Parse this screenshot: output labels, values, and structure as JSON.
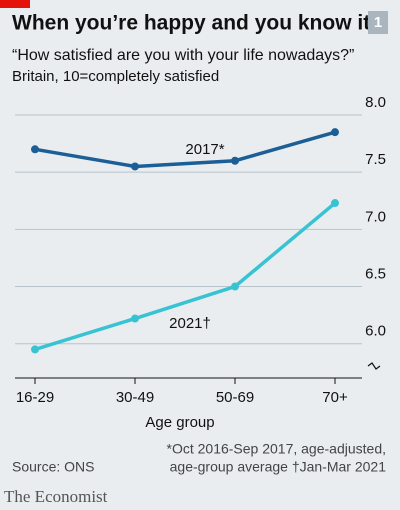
{
  "chart_data": {
    "type": "line",
    "title": "When you’re happy and you know it",
    "chart_number": "1",
    "subtitle": "“How satisfied are you with your life nowadays?”",
    "subtitle2": "Britain, 10=completely satisfied",
    "xlabel": "Age group",
    "categories": [
      "16-29",
      "30-49",
      "50-69",
      "70+"
    ],
    "series": [
      {
        "name": "2017*",
        "color": "#1c5f96",
        "values": [
          7.7,
          7.55,
          7.6,
          7.85
        ]
      },
      {
        "name": "2021†",
        "color": "#38c3d3",
        "values": [
          5.95,
          6.22,
          6.5,
          7.23
        ]
      }
    ],
    "ylim": [
      5.7,
      8.0
    ],
    "yticks": [
      {
        "value": 6,
        "label": "6.0"
      },
      6.5,
      {
        "value": 7,
        "label": "7.0"
      },
      7.5,
      {
        "value": 8,
        "label": "8.0"
      }
    ],
    "grid": true,
    "source": "Source: ONS",
    "notes": [
      "*Oct 2016-Sep 2017, age-adjusted,",
      "age-group average  †Jan-Mar 2021"
    ],
    "publisher": "The Economist"
  }
}
